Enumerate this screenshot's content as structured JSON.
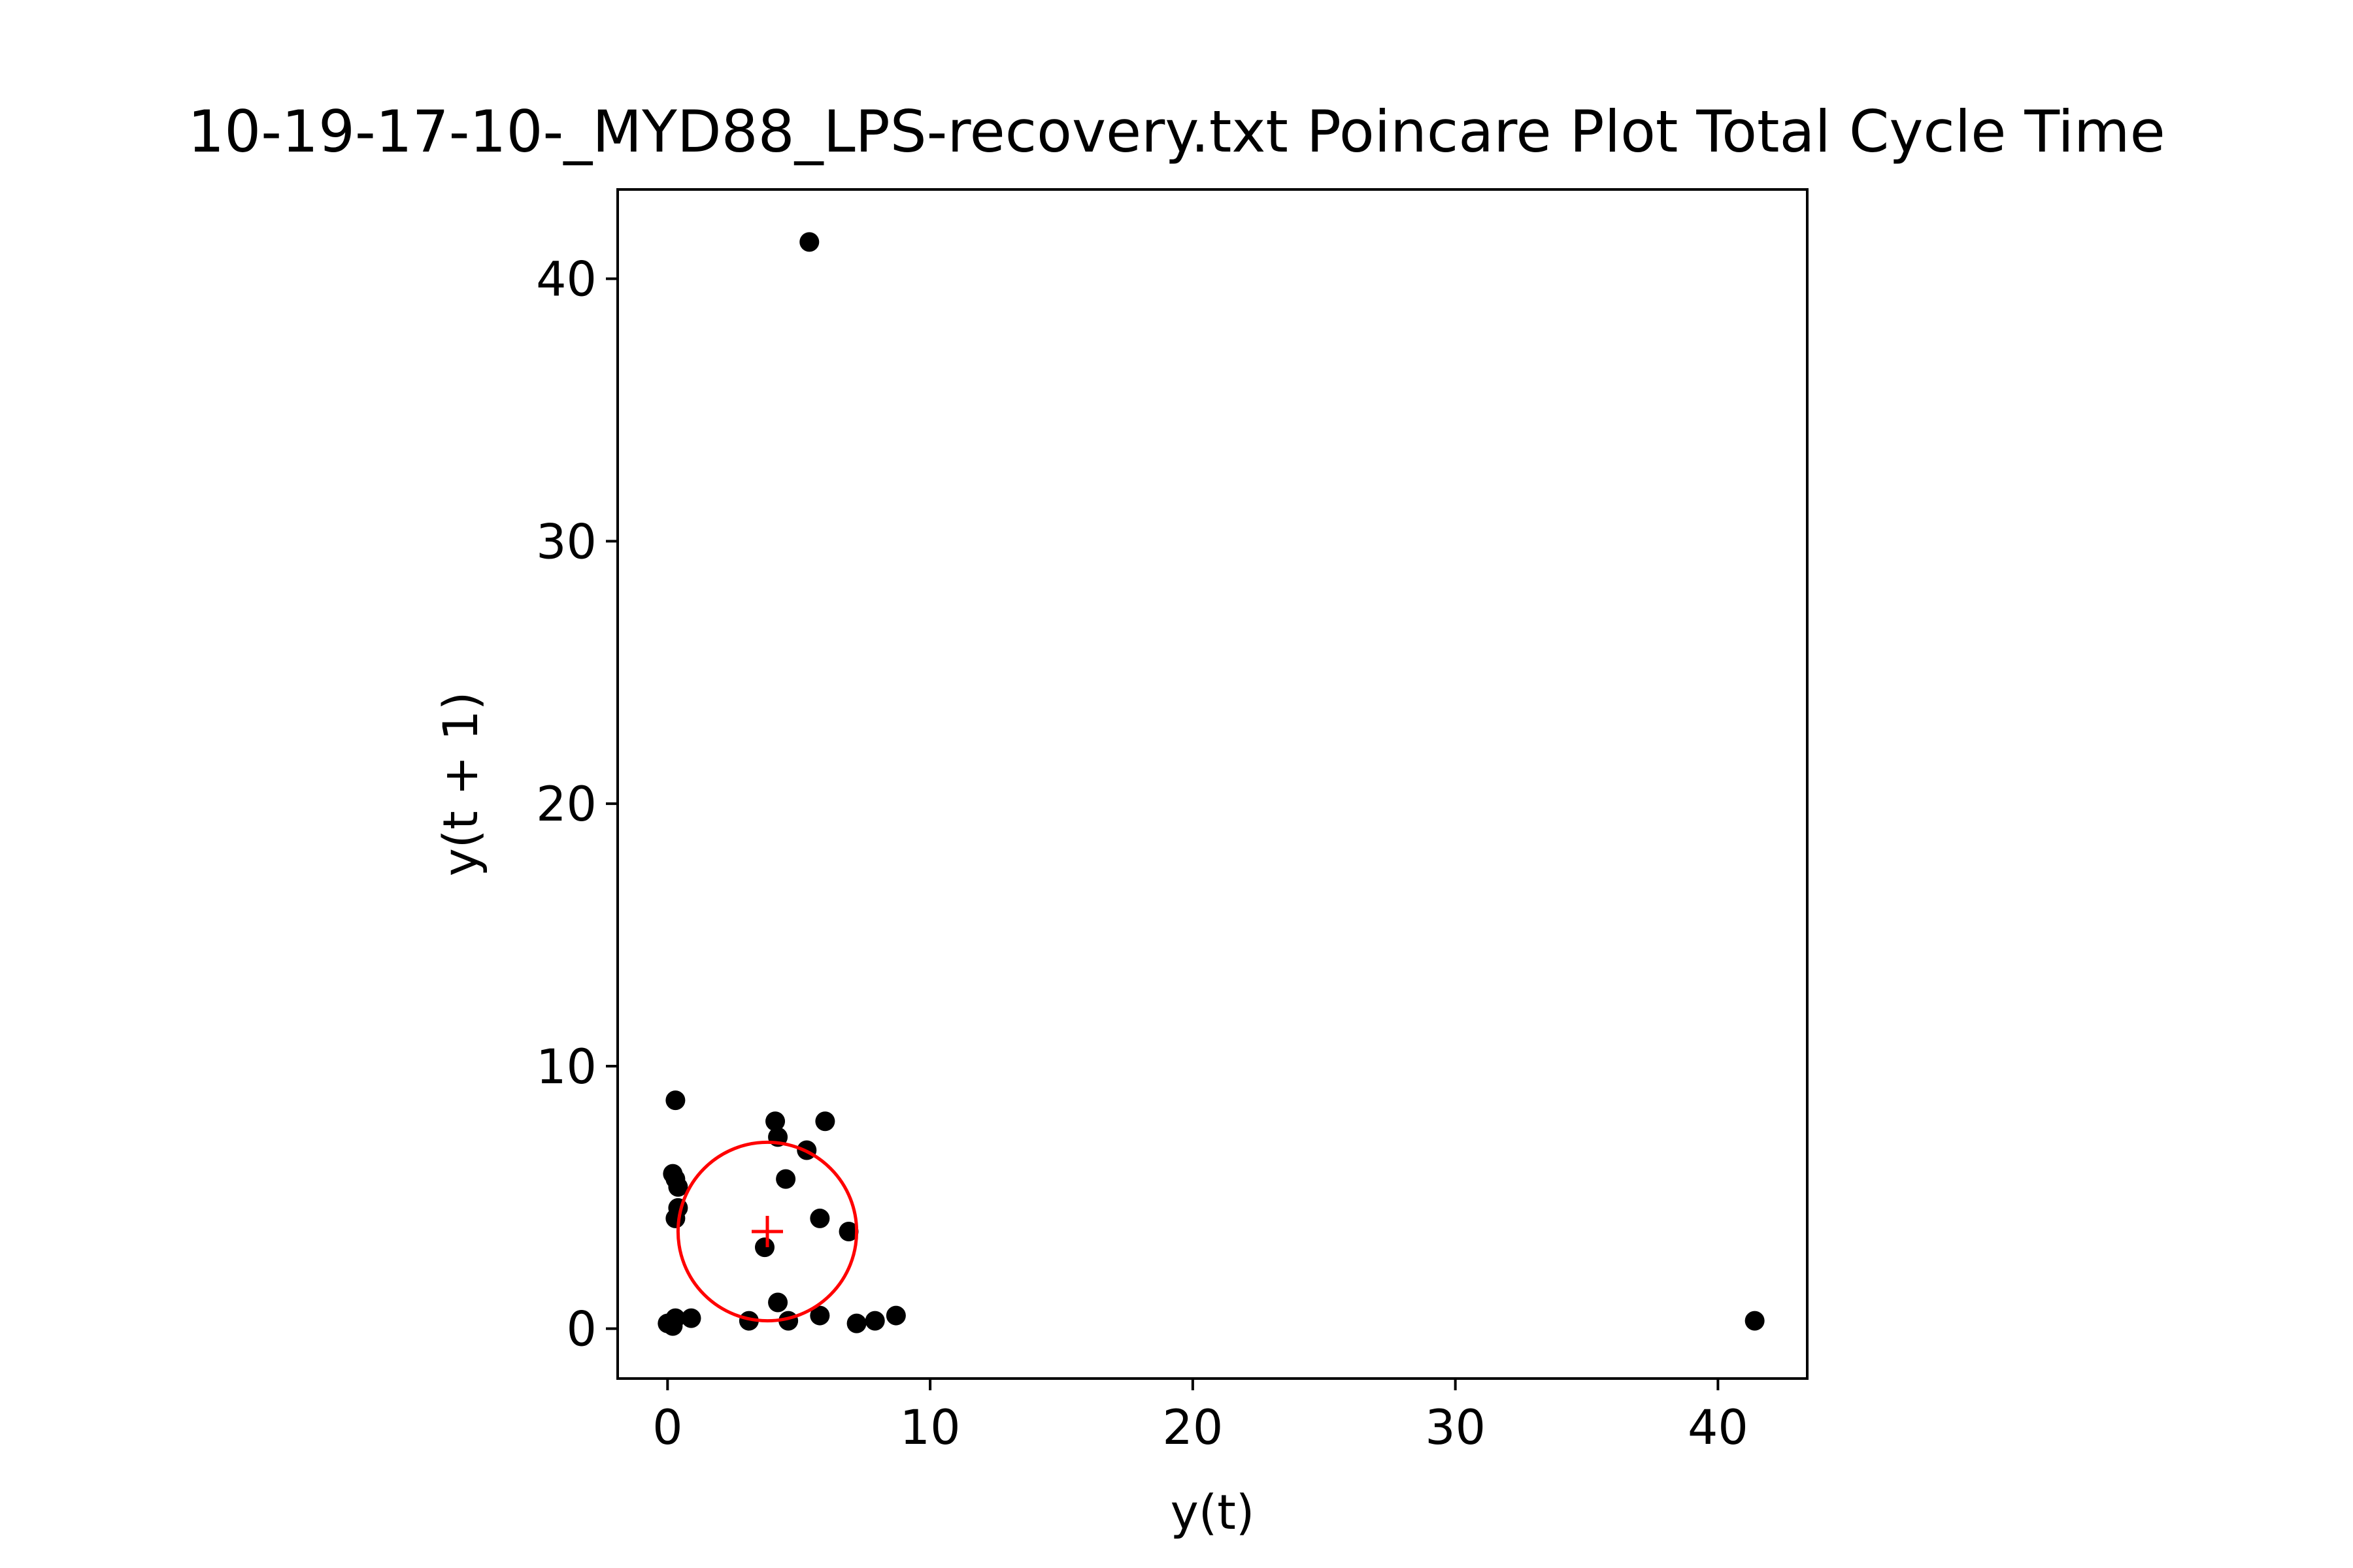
{
  "chart_data": {
    "type": "scatter",
    "title": "10-19-17-10-_MYD88_LPS-recovery.txt Poincare Plot Total Cycle Time",
    "xlabel": "y(t)",
    "ylabel": "y(t + 1)",
    "xlim": [
      -1.9,
      43.4
    ],
    "ylim": [
      -1.9,
      43.4
    ],
    "xticks": [
      0,
      10,
      20,
      30,
      40
    ],
    "yticks": [
      0,
      10,
      20,
      30,
      40
    ],
    "xtick_labels": [
      "0",
      "10",
      "20",
      "30",
      "40"
    ],
    "ytick_labels": [
      "0",
      "10",
      "20",
      "30",
      "40"
    ],
    "grid": false,
    "legend": "none",
    "point_color": "#000000",
    "centroid": {
      "x": 3.8,
      "y": 3.7,
      "marker": "+",
      "color": "#ff0000"
    },
    "dispersion_circle": {
      "cx": 3.8,
      "cy": 3.7,
      "r": 3.4,
      "color": "#ff0000"
    },
    "points": [
      {
        "x": 5.4,
        "y": 41.4
      },
      {
        "x": 41.4,
        "y": 0.3
      },
      {
        "x": 0.3,
        "y": 8.7
      },
      {
        "x": 4.1,
        "y": 7.9
      },
      {
        "x": 6.0,
        "y": 7.9
      },
      {
        "x": 4.2,
        "y": 7.3
      },
      {
        "x": 5.3,
        "y": 6.8
      },
      {
        "x": 0.2,
        "y": 5.9
      },
      {
        "x": 0.3,
        "y": 5.7
      },
      {
        "x": 4.5,
        "y": 5.7
      },
      {
        "x": 0.4,
        "y": 5.4
      },
      {
        "x": 0.4,
        "y": 4.6
      },
      {
        "x": 0.3,
        "y": 4.2
      },
      {
        "x": 5.8,
        "y": 4.2
      },
      {
        "x": 6.9,
        "y": 3.7
      },
      {
        "x": 3.7,
        "y": 3.1
      },
      {
        "x": 4.2,
        "y": 1.0
      },
      {
        "x": 0.0,
        "y": 0.2
      },
      {
        "x": 0.2,
        "y": 0.1
      },
      {
        "x": 0.3,
        "y": 0.4
      },
      {
        "x": 0.9,
        "y": 0.4
      },
      {
        "x": 3.1,
        "y": 0.3
      },
      {
        "x": 4.6,
        "y": 0.3
      },
      {
        "x": 5.8,
        "y": 0.5
      },
      {
        "x": 7.2,
        "y": 0.2
      },
      {
        "x": 7.9,
        "y": 0.3
      },
      {
        "x": 8.7,
        "y": 0.5
      }
    ]
  }
}
